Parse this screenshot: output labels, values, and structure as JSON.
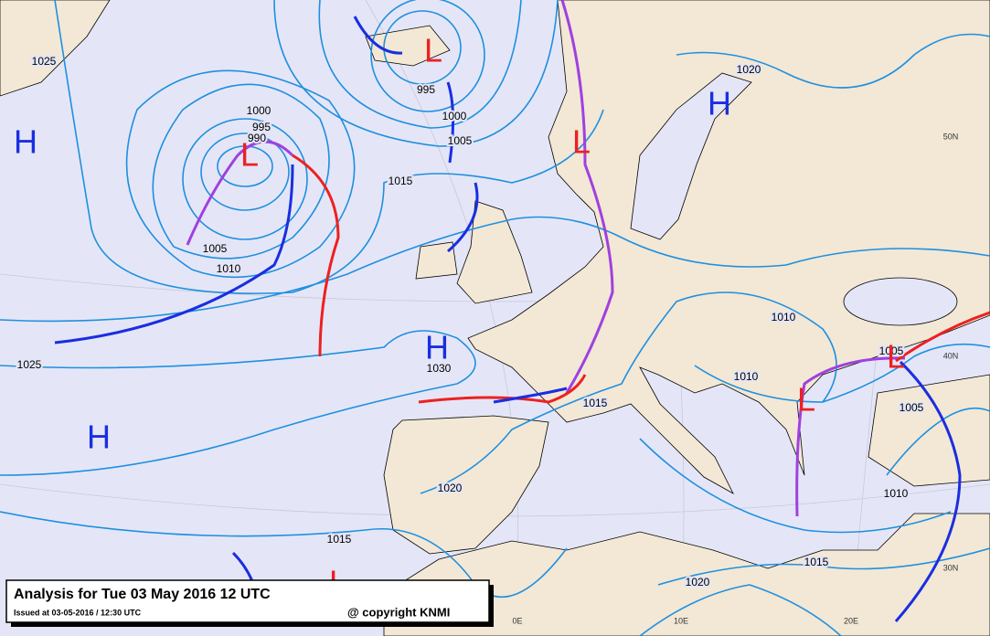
{
  "title": "Analysis for Tue 03 May 2016 12 UTC",
  "issued": "Issued at 03-05-2016 / 12:30 UTC",
  "copyright": "@ copyright KNMI",
  "isobar_labels": [
    "1025",
    "1000",
    "995",
    "990",
    "995",
    "1000",
    "1005",
    "1015",
    "1005",
    "1010",
    "1025",
    "1030",
    "1020",
    "1010",
    "1010",
    "1015",
    "1005",
    "1005",
    "1020",
    "1010",
    "1015",
    "1015",
    "1020"
  ],
  "pressure_centers": [
    "H",
    "H",
    "H",
    "H",
    "L",
    "L",
    "L",
    "L",
    "L",
    "L"
  ],
  "graticule_labels": [
    "50N",
    "40N",
    "30N",
    "0E",
    "10E",
    "20E"
  ]
}
